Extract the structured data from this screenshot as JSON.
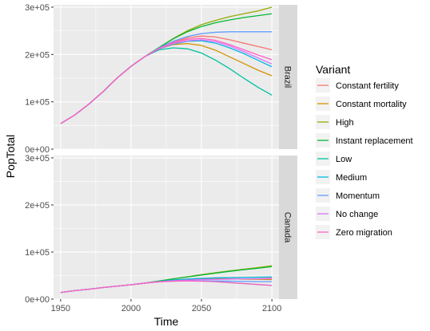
{
  "chart_data": {
    "type": "line",
    "xlabel": "Time",
    "ylabel": "PopTotal",
    "xlim": [
      1945,
      2105
    ],
    "ylim": [
      0,
      305000
    ],
    "x_ticks": [
      1950,
      2000,
      2050,
      2100
    ],
    "x_tick_labels": [
      "1950",
      "2000",
      "2050",
      "2100"
    ],
    "y_ticks": [
      0,
      100000,
      200000,
      300000
    ],
    "y_tick_labels": [
      "0e+00",
      "1e+05",
      "2e+05",
      "3e+05"
    ],
    "legend": {
      "title": "Variant",
      "position": "right"
    },
    "grid": true,
    "variants": [
      {
        "name": "Constant fertility",
        "color": "#F8766D"
      },
      {
        "name": "Constant mortality",
        "color": "#D39200"
      },
      {
        "name": "High",
        "color": "#93AA00"
      },
      {
        "name": "Instant replacement",
        "color": "#00BA38"
      },
      {
        "name": "Low",
        "color": "#00C19F"
      },
      {
        "name": "Medium",
        "color": "#00B9E3"
      },
      {
        "name": "Momentum",
        "color": "#619CFF"
      },
      {
        "name": "No change",
        "color": "#DB72FB"
      },
      {
        "name": "Zero migration",
        "color": "#FF61C3"
      }
    ],
    "facets": [
      {
        "label": "Brazil",
        "series": [
          {
            "name": "Constant fertility",
            "x": [
              1950,
              1960,
              1970,
              1980,
              1990,
              2000,
              2010,
              2020,
              2030,
              2040,
              2050,
              2060,
              2070,
              2080,
              2090,
              2100
            ],
            "y": [
              54000,
              72000,
              95000,
              121000,
              150000,
              175000,
              196000,
              213000,
              226000,
              235000,
              239000,
              237000,
              231000,
              224000,
              217000,
              210000
            ]
          },
          {
            "name": "Constant mortality",
            "x": [
              1950,
              1960,
              1970,
              1980,
              1990,
              2000,
              2010,
              2020,
              2030,
              2040,
              2050,
              2060,
              2070,
              2080,
              2090,
              2100
            ],
            "y": [
              54000,
              72000,
              95000,
              121000,
              150000,
              175000,
              196000,
              212000,
              221000,
              223000,
              219000,
              209000,
              195000,
              181000,
              167000,
              155000
            ]
          },
          {
            "name": "High",
            "x": [
              1950,
              1960,
              1970,
              1980,
              1990,
              2000,
              2010,
              2020,
              2030,
              2040,
              2050,
              2060,
              2070,
              2080,
              2090,
              2100
            ],
            "y": [
              54000,
              72000,
              95000,
              121000,
              150000,
              175000,
              196000,
              215000,
              234000,
              250000,
              263000,
              272000,
              280000,
              286000,
              292000,
              300000
            ]
          },
          {
            "name": "Instant replacement",
            "x": [
              1950,
              1960,
              1970,
              1980,
              1990,
              2000,
              2010,
              2020,
              2030,
              2040,
              2050,
              2060,
              2070,
              2080,
              2090,
              2100
            ],
            "y": [
              54000,
              72000,
              95000,
              121000,
              150000,
              175000,
              196000,
              215000,
              233000,
              248000,
              259000,
              267000,
              273000,
              278000,
              282000,
              286000
            ]
          },
          {
            "name": "Low",
            "x": [
              1950,
              1960,
              1970,
              1980,
              1990,
              2000,
              2010,
              2020,
              2030,
              2040,
              2050,
              2060,
              2070,
              2080,
              2090,
              2100
            ],
            "y": [
              54000,
              72000,
              95000,
              121000,
              150000,
              175000,
              196000,
              210000,
              214000,
              212000,
              203000,
              188000,
              170000,
              150000,
              131000,
              114000
            ]
          },
          {
            "name": "Medium",
            "x": [
              1950,
              1960,
              1970,
              1980,
              1990,
              2000,
              2010,
              2020,
              2030,
              2040,
              2050,
              2060,
              2070,
              2080,
              2090,
              2100
            ],
            "y": [
              54000,
              72000,
              95000,
              121000,
              150000,
              175000,
              196000,
              212000,
              222000,
              228000,
              229000,
              224000,
              214000,
              202000,
              188000,
              174000
            ]
          },
          {
            "name": "Momentum",
            "x": [
              1950,
              1960,
              1970,
              1980,
              1990,
              2000,
              2010,
              2020,
              2030,
              2040,
              2050,
              2060,
              2070,
              2080,
              2090,
              2100
            ],
            "y": [
              54000,
              72000,
              95000,
              121000,
              150000,
              175000,
              196000,
              214000,
              228000,
              238000,
              244000,
              247000,
              248000,
              248000,
              248000,
              248000
            ]
          },
          {
            "name": "No change",
            "x": [
              1950,
              1960,
              1970,
              1980,
              1990,
              2000,
              2010,
              2020,
              2030,
              2040,
              2050,
              2060,
              2070,
              2080,
              2090,
              2100
            ],
            "y": [
              54000,
              72000,
              95000,
              121000,
              150000,
              175000,
              196000,
              212000,
              223000,
              229000,
              231000,
              227000,
              218000,
              206000,
              193000,
              180000
            ]
          },
          {
            "name": "Zero migration",
            "x": [
              1950,
              1960,
              1970,
              1980,
              1990,
              2000,
              2010,
              2020,
              2030,
              2040,
              2050,
              2060,
              2070,
              2080,
              2090,
              2100
            ],
            "y": [
              54000,
              72000,
              95000,
              121000,
              150000,
              175000,
              196000,
              213000,
              225000,
              232000,
              234000,
              230000,
              221000,
              210000,
              199000,
              189000
            ]
          }
        ]
      },
      {
        "label": "Canada",
        "series": [
          {
            "name": "Constant fertility",
            "x": [
              1950,
              1960,
              1970,
              1980,
              1990,
              2000,
              2010,
              2020,
              2030,
              2040,
              2050,
              2060,
              2070,
              2080,
              2090,
              2100
            ],
            "y": [
              14000,
              18000,
              21000,
              24500,
              27500,
              30500,
              34000,
              37500,
              40500,
              42500,
              44000,
              45000,
              45500,
              46000,
              46000,
              46000
            ]
          },
          {
            "name": "Constant mortality",
            "x": [
              1950,
              1960,
              1970,
              1980,
              1990,
              2000,
              2010,
              2020,
              2030,
              2040,
              2050,
              2060,
              2070,
              2080,
              2090,
              2100
            ],
            "y": [
              14000,
              18000,
              21000,
              24500,
              27500,
              30500,
              34000,
              37500,
              40500,
              42500,
              43500,
              43500,
              43000,
              42500,
              42000,
              41500
            ]
          },
          {
            "name": "High",
            "x": [
              1950,
              1960,
              1970,
              1980,
              1990,
              2000,
              2010,
              2020,
              2030,
              2040,
              2050,
              2060,
              2070,
              2080,
              2090,
              2100
            ],
            "y": [
              14000,
              18000,
              21000,
              24500,
              27500,
              30500,
              34000,
              38500,
              43000,
              47500,
              52000,
              56000,
              60000,
              63500,
              67000,
              71000
            ]
          },
          {
            "name": "Instant replacement",
            "x": [
              1950,
              1960,
              1970,
              1980,
              1990,
              2000,
              2010,
              2020,
              2030,
              2040,
              2050,
              2060,
              2070,
              2080,
              2090,
              2100
            ],
            "y": [
              14000,
              18000,
              21000,
              24500,
              27500,
              30500,
              34000,
              38500,
              43000,
              47000,
              51000,
              55000,
              59000,
              62500,
              65500,
              69000
            ]
          },
          {
            "name": "Low",
            "x": [
              1950,
              1960,
              1970,
              1980,
              1990,
              2000,
              2010,
              2020,
              2030,
              2040,
              2050,
              2060,
              2070,
              2080,
              2090,
              2100
            ],
            "y": [
              14000,
              18000,
              21000,
              24500,
              27500,
              30500,
              34000,
              37000,
              38500,
              39000,
              38500,
              37000,
              35000,
              33000,
              31000,
              29000
            ]
          },
          {
            "name": "Medium",
            "x": [
              1950,
              1960,
              1970,
              1980,
              1990,
              2000,
              2010,
              2020,
              2030,
              2040,
              2050,
              2060,
              2070,
              2080,
              2090,
              2100
            ],
            "y": [
              14000,
              18000,
              21000,
              24500,
              27500,
              30500,
              34000,
              37500,
              40500,
              42500,
              44000,
              45000,
              45500,
              46000,
              46500,
              47000
            ]
          },
          {
            "name": "Momentum",
            "x": [
              1950,
              1960,
              1970,
              1980,
              1990,
              2000,
              2010,
              2020,
              2030,
              2040,
              2050,
              2060,
              2070,
              2080,
              2090,
              2100
            ],
            "y": [
              14000,
              18000,
              21000,
              24500,
              27500,
              30500,
              34000,
              37000,
              38500,
              39000,
              39000,
              38500,
              38000,
              37500,
              37000,
              37000
            ]
          },
          {
            "name": "No change",
            "x": [
              1950,
              1960,
              1970,
              1980,
              1990,
              2000,
              2010,
              2020,
              2030,
              2040,
              2050,
              2060,
              2070,
              2080,
              2090,
              2100
            ],
            "y": [
              14000,
              18000,
              21000,
              24500,
              27500,
              30500,
              34000,
              37000,
              39000,
              40500,
              41500,
              42000,
              42500,
              43000,
              43000,
              43500
            ]
          },
          {
            "name": "Zero migration",
            "x": [
              1950,
              1960,
              1970,
              1980,
              1990,
              2000,
              2010,
              2020,
              2030,
              2040,
              2050,
              2060,
              2070,
              2080,
              2090,
              2100
            ],
            "y": [
              14000,
              18000,
              21000,
              24500,
              27500,
              30500,
              34000,
              36500,
              38000,
              38500,
              38000,
              37000,
              35000,
              33000,
              31000,
              29000
            ]
          }
        ]
      }
    ]
  }
}
